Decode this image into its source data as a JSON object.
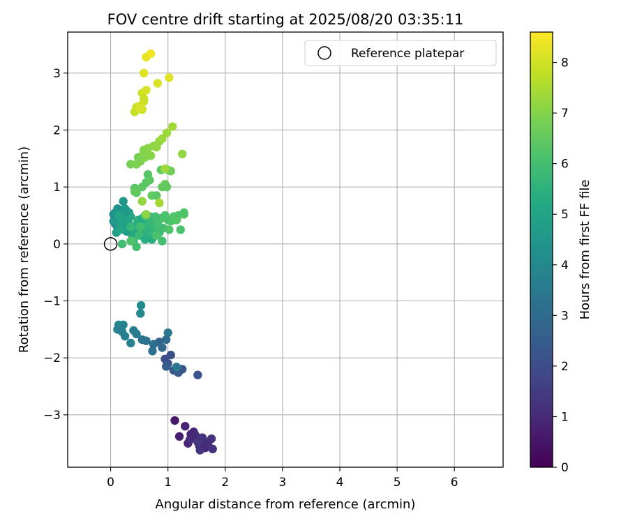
{
  "chart_data": {
    "type": "scatter",
    "title": "FOV centre drift starting at 2025/08/20 03:35:11",
    "xlabel": "Angular distance from reference (arcmin)",
    "ylabel": "Rotation from reference (arcmin)",
    "xlim": [
      -0.75,
      6.85
    ],
    "ylim": [
      -3.92,
      3.72
    ],
    "xticks": [
      0,
      1,
      2,
      3,
      4,
      5,
      6
    ],
    "yticks": [
      -3,
      -2,
      -1,
      0,
      1,
      2,
      3
    ],
    "grid": true,
    "legend": {
      "placement": "top-right",
      "entries": [
        "Reference platepar"
      ]
    },
    "reference_point": {
      "label": "Reference platepar",
      "x": 0,
      "y": 0
    },
    "colorbar": {
      "label": "Hours from first FF file",
      "colormap": "viridis",
      "range": [
        0,
        8.6
      ],
      "ticks": [
        0,
        1,
        2,
        3,
        4,
        5,
        6,
        7,
        8
      ]
    },
    "series": [
      {
        "points": [
          [
            1.12,
            -3.1,
            0.6
          ],
          [
            1.2,
            -3.38,
            0.7
          ],
          [
            1.3,
            -3.2,
            0.8
          ],
          [
            1.35,
            -3.5,
            0.9
          ],
          [
            1.4,
            -3.34,
            0.8
          ],
          [
            1.45,
            -3.3,
            0.9
          ],
          [
            1.5,
            -3.42,
            1.0
          ],
          [
            1.55,
            -3.55,
            0.9
          ],
          [
            1.58,
            -3.6,
            1.0
          ],
          [
            1.62,
            -3.45,
            1.1
          ],
          [
            1.65,
            -3.58,
            1.0
          ],
          [
            1.7,
            -3.5,
            1.1
          ],
          [
            1.76,
            -3.42,
            1.2
          ],
          [
            1.78,
            -3.6,
            1.2
          ],
          [
            1.6,
            -3.4,
            1.3
          ],
          [
            1.48,
            -3.36,
            1.2
          ],
          [
            1.38,
            -3.44,
            1.1
          ],
          [
            1.52,
            -3.48,
            1.4
          ],
          [
            1.42,
            -3.38,
            1.0
          ],
          [
            1.56,
            -3.62,
            1.3
          ],
          [
            0.95,
            -2.02,
            2.0
          ],
          [
            1.0,
            -2.1,
            2.1
          ],
          [
            1.05,
            -1.95,
            2.1
          ],
          [
            1.1,
            -2.22,
            2.2
          ],
          [
            1.15,
            -2.18,
            2.3
          ],
          [
            1.18,
            -2.26,
            2.4
          ],
          [
            1.2,
            -2.2,
            2.5
          ],
          [
            1.25,
            -2.2,
            2.3
          ],
          [
            1.52,
            -2.3,
            2.2
          ],
          [
            0.97,
            -2.15,
            2.6
          ],
          [
            0.85,
            -1.72,
            2.8
          ],
          [
            0.9,
            -1.82,
            2.9
          ],
          [
            0.97,
            -1.68,
            3.0
          ],
          [
            0.75,
            -1.76,
            3.1
          ],
          [
            0.62,
            -1.7,
            3.2
          ],
          [
            0.55,
            -1.68,
            3.3
          ],
          [
            0.73,
            -1.88,
            3.2
          ],
          [
            1.0,
            -1.56,
            3.4
          ],
          [
            1.15,
            -2.16,
            3.5
          ],
          [
            0.45,
            -1.58,
            3.5
          ],
          [
            0.4,
            -1.52,
            3.6
          ],
          [
            0.35,
            -1.74,
            3.7
          ],
          [
            0.25,
            -1.62,
            3.6
          ],
          [
            0.22,
            -1.42,
            3.8
          ],
          [
            0.14,
            -1.42,
            3.9
          ],
          [
            0.12,
            -1.5,
            3.8
          ],
          [
            0.52,
            -1.22,
            4.0
          ],
          [
            0.53,
            -1.08,
            4.1
          ],
          [
            0.2,
            -1.54,
            3.7
          ],
          [
            0.05,
            0.52,
            4.2
          ],
          [
            0.08,
            0.35,
            4.3
          ],
          [
            0.1,
            0.45,
            4.2
          ],
          [
            0.12,
            0.28,
            4.4
          ],
          [
            0.15,
            0.6,
            4.4
          ],
          [
            0.18,
            0.48,
            4.5
          ],
          [
            0.2,
            0.32,
            4.5
          ],
          [
            0.22,
            0.75,
            4.6
          ],
          [
            0.25,
            0.62,
            4.6
          ],
          [
            0.28,
            0.22,
            4.7
          ],
          [
            0.3,
            0.4,
            4.8
          ],
          [
            0.32,
            0.55,
            4.8
          ],
          [
            0.1,
            0.2,
            4.9
          ],
          [
            0.15,
            0.42,
            4.9
          ],
          [
            0.18,
            0.35,
            5.0
          ],
          [
            0.12,
            0.62,
            4.3
          ],
          [
            0.22,
            0.52,
            4.7
          ],
          [
            0.25,
            0.38,
            4.9
          ],
          [
            0.35,
            0.48,
            5.1
          ],
          [
            0.4,
            0.3,
            5.0
          ],
          [
            0.05,
            0.4,
            4.5
          ],
          [
            0.08,
            0.55,
            4.4
          ],
          [
            0.18,
            0.25,
            5.1
          ],
          [
            0.28,
            0.58,
            4.6
          ],
          [
            0.14,
            0.5,
            5.0
          ],
          [
            0.42,
            0.2,
            5.2
          ],
          [
            0.45,
            0.35,
            5.3
          ],
          [
            0.38,
            0.12,
            5.2
          ],
          [
            0.48,
            0.42,
            5.4
          ],
          [
            0.52,
            0.28,
            5.3
          ],
          [
            0.55,
            0.18,
            5.5
          ],
          [
            0.58,
            0.4,
            5.4
          ],
          [
            0.62,
            0.22,
            5.5
          ],
          [
            0.65,
            0.32,
            5.6
          ],
          [
            0.68,
            0.48,
            5.5
          ],
          [
            0.7,
            0.12,
            5.6
          ],
          [
            0.72,
            0.4,
            5.7
          ],
          [
            0.75,
            0.25,
            5.6
          ],
          [
            0.78,
            0.45,
            5.7
          ],
          [
            0.8,
            0.3,
            5.8
          ],
          [
            0.72,
            0.08,
            5.4
          ],
          [
            0.5,
            0.15,
            5.8
          ],
          [
            0.35,
            0.3,
            5.7
          ],
          [
            0.55,
            0.45,
            5.2
          ],
          [
            0.6,
            0.08,
            5.3
          ],
          [
            0.4,
            0.05,
            5.9
          ],
          [
            0.45,
            -0.05,
            6.0
          ],
          [
            0.2,
            0.0,
            5.9
          ],
          [
            0.52,
            0.3,
            6.0
          ],
          [
            0.62,
            0.5,
            6.0
          ],
          [
            0.82,
            0.35,
            6.0
          ],
          [
            0.85,
            0.2,
            5.9
          ],
          [
            0.88,
            0.45,
            6.1
          ],
          [
            0.92,
            0.28,
            6.0
          ],
          [
            0.95,
            0.5,
            6.1
          ],
          [
            1.0,
            0.42,
            6.2
          ],
          [
            1.05,
            0.4,
            6.1
          ],
          [
            1.1,
            0.48,
            6.2
          ],
          [
            1.15,
            0.42,
            6.3
          ],
          [
            1.18,
            0.5,
            6.2
          ],
          [
            1.22,
            0.25,
            6.1
          ],
          [
            1.28,
            0.52,
            6.3
          ],
          [
            1.28,
            0.55,
            6.2
          ],
          [
            1.02,
            0.25,
            6.2
          ],
          [
            0.9,
            0.05,
            6.0
          ],
          [
            0.8,
            0.15,
            6.1
          ],
          [
            0.78,
            0.48,
            6.0
          ],
          [
            0.6,
            0.5,
            6.1
          ],
          [
            0.35,
            0.05,
            6.2
          ],
          [
            0.42,
            0.98,
            6.3
          ],
          [
            0.45,
            0.9,
            6.4
          ],
          [
            0.55,
            1.0,
            6.4
          ],
          [
            0.62,
            1.08,
            6.3
          ],
          [
            0.65,
            1.22,
            6.3
          ],
          [
            0.68,
            1.12,
            6.4
          ],
          [
            0.72,
            0.85,
            6.5
          ],
          [
            0.8,
            0.85,
            6.4
          ],
          [
            0.88,
            1.3,
            6.5
          ],
          [
            0.9,
            1.0,
            6.5
          ],
          [
            0.95,
            1.05,
            6.6
          ],
          [
            0.98,
            1.0,
            6.5
          ],
          [
            1.0,
            1.3,
            6.6
          ],
          [
            1.05,
            1.28,
            6.7
          ],
          [
            0.42,
            0.92,
            6.5
          ],
          [
            0.35,
            1.4,
            6.8
          ],
          [
            0.45,
            1.4,
            6.9
          ],
          [
            0.48,
            1.52,
            6.8
          ],
          [
            0.52,
            1.45,
            6.9
          ],
          [
            0.58,
            1.6,
            7.0
          ],
          [
            0.6,
            1.52,
            7.0
          ],
          [
            0.65,
            1.68,
            7.1
          ],
          [
            0.7,
            1.55,
            7.0
          ],
          [
            0.75,
            1.72,
            7.1
          ],
          [
            0.8,
            1.7,
            7.2
          ],
          [
            0.85,
            1.8,
            7.2
          ],
          [
            0.9,
            1.85,
            7.3
          ],
          [
            0.98,
            1.95,
            7.3
          ],
          [
            1.08,
            2.06,
            7.4
          ],
          [
            1.25,
            1.58,
            7.2
          ],
          [
            0.58,
            1.65,
            7.0
          ],
          [
            0.55,
            0.75,
            7.2
          ],
          [
            0.85,
            0.72,
            7.4
          ],
          [
            0.62,
            0.52,
            7.1
          ],
          [
            0.95,
            1.32,
            7.3
          ],
          [
            0.42,
            2.32,
            7.8
          ],
          [
            0.45,
            2.4,
            7.9
          ],
          [
            0.5,
            2.42,
            7.9
          ],
          [
            0.55,
            2.36,
            8.0
          ],
          [
            0.58,
            2.5,
            8.0
          ],
          [
            0.55,
            2.65,
            8.0
          ],
          [
            0.62,
            2.7,
            8.1
          ],
          [
            0.82,
            2.82,
            8.1
          ],
          [
            0.58,
            3.0,
            8.2
          ],
          [
            1.02,
            2.92,
            8.2
          ],
          [
            0.62,
            3.28,
            8.3
          ],
          [
            0.7,
            3.34,
            8.4
          ],
          [
            0.5,
            2.4,
            8.1
          ],
          [
            0.58,
            2.55,
            7.9
          ]
        ]
      }
    ]
  }
}
